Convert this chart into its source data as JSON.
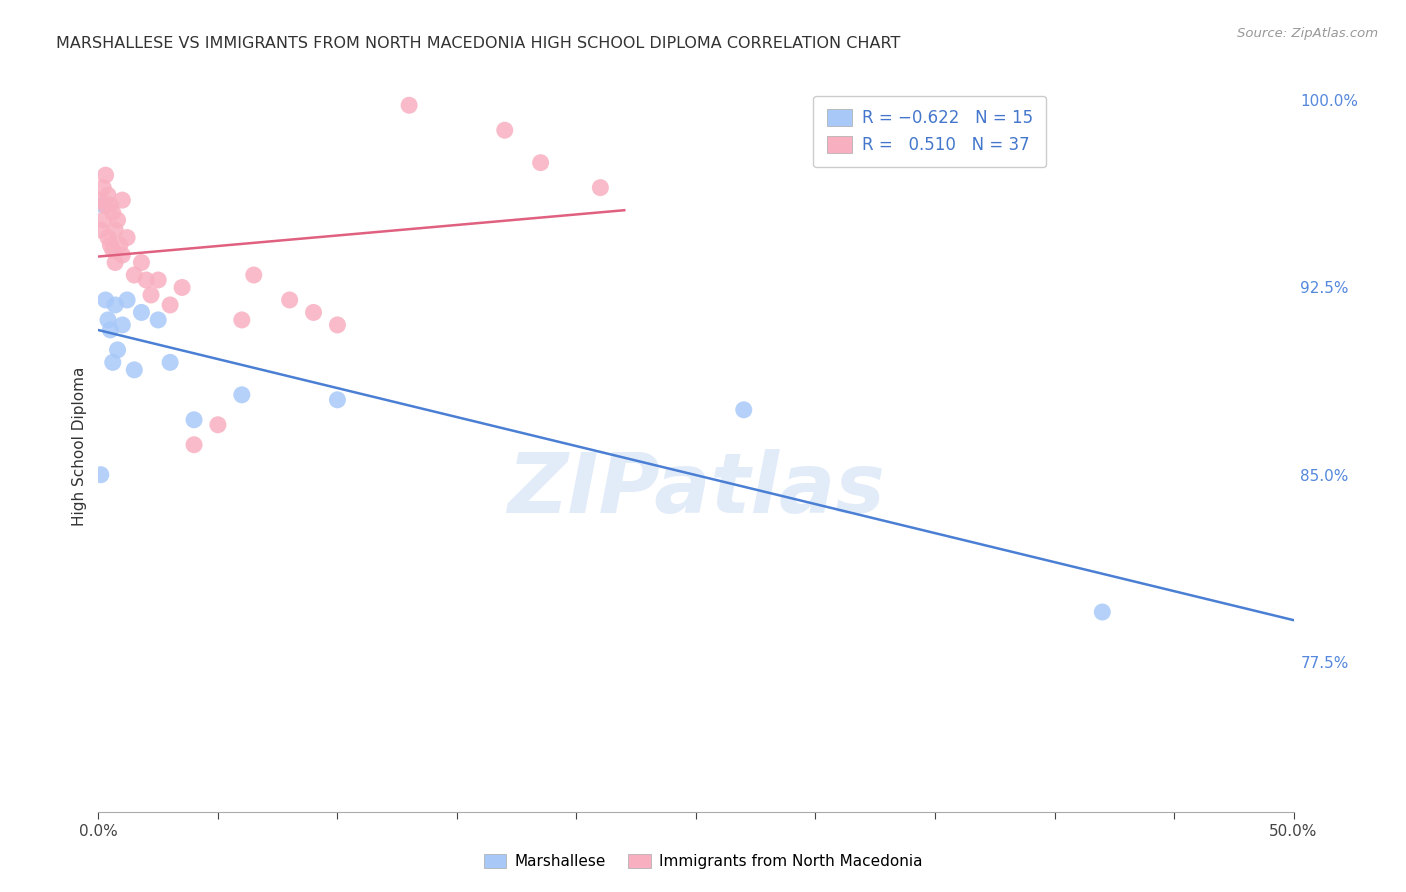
{
  "title": "MARSHALLESE VS IMMIGRANTS FROM NORTH MACEDONIA HIGH SCHOOL DIPLOMA CORRELATION CHART",
  "source": "Source: ZipAtlas.com",
  "ylabel": "High School Diploma",
  "x_min": 0.0,
  "x_max": 0.5,
  "y_min": 0.715,
  "y_max": 1.008,
  "y_ticks_right": [
    1.0,
    0.925,
    0.85,
    0.775
  ],
  "y_tick_labels_right": [
    "100.0%",
    "92.5%",
    "85.0%",
    "77.5%"
  ],
  "marshallese_color": "#a8c8f8",
  "macedonia_color": "#f8b0c0",
  "marshallese_line_color": "#4a7fd4",
  "macedonia_line_color": "#e06080",
  "watermark_text": "ZIPatlas",
  "background_color": "#ffffff",
  "grid_color": "#dddddd",
  "marshallese_points": [
    [
      0.001,
      0.85
    ],
    [
      0.002,
      0.958
    ],
    [
      0.003,
      0.92
    ],
    [
      0.004,
      0.912
    ],
    [
      0.005,
      0.908
    ],
    [
      0.006,
      0.895
    ],
    [
      0.007,
      0.918
    ],
    [
      0.008,
      0.9
    ],
    [
      0.01,
      0.91
    ],
    [
      0.012,
      0.92
    ],
    [
      0.015,
      0.892
    ],
    [
      0.018,
      0.915
    ],
    [
      0.025,
      0.912
    ],
    [
      0.03,
      0.895
    ],
    [
      0.04,
      0.872
    ],
    [
      0.06,
      0.882
    ],
    [
      0.1,
      0.88
    ],
    [
      0.27,
      0.876
    ],
    [
      0.42,
      0.795
    ]
  ],
  "macedonia_points": [
    [
      0.001,
      0.96
    ],
    [
      0.001,
      0.948
    ],
    [
      0.002,
      0.965
    ],
    [
      0.002,
      0.952
    ],
    [
      0.003,
      0.97
    ],
    [
      0.003,
      0.958
    ],
    [
      0.004,
      0.962
    ],
    [
      0.004,
      0.945
    ],
    [
      0.005,
      0.958
    ],
    [
      0.005,
      0.942
    ],
    [
      0.006,
      0.955
    ],
    [
      0.006,
      0.94
    ],
    [
      0.007,
      0.948
    ],
    [
      0.007,
      0.935
    ],
    [
      0.008,
      0.952
    ],
    [
      0.009,
      0.942
    ],
    [
      0.01,
      0.96
    ],
    [
      0.01,
      0.938
    ],
    [
      0.012,
      0.945
    ],
    [
      0.015,
      0.93
    ],
    [
      0.018,
      0.935
    ],
    [
      0.02,
      0.928
    ],
    [
      0.022,
      0.922
    ],
    [
      0.025,
      0.928
    ],
    [
      0.03,
      0.918
    ],
    [
      0.035,
      0.925
    ],
    [
      0.04,
      0.862
    ],
    [
      0.05,
      0.87
    ],
    [
      0.06,
      0.912
    ],
    [
      0.065,
      0.93
    ],
    [
      0.08,
      0.92
    ],
    [
      0.09,
      0.915
    ],
    [
      0.1,
      0.91
    ],
    [
      0.13,
      0.998
    ],
    [
      0.17,
      0.988
    ],
    [
      0.185,
      0.975
    ],
    [
      0.21,
      0.965
    ]
  ],
  "x_tick_positions": [
    0.0,
    0.05,
    0.1,
    0.15,
    0.2,
    0.25,
    0.3,
    0.35,
    0.4,
    0.45,
    0.5
  ]
}
